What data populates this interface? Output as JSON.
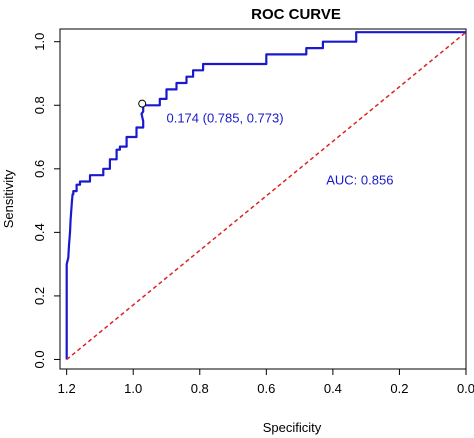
{
  "chart_data": {
    "type": "line",
    "title": "ROC CURVE",
    "xlabel": "Specificity",
    "ylabel": "Sensitivity",
    "xlim": [
      1.22,
      0.0
    ],
    "ylim": [
      -0.03,
      1.04
    ],
    "x_reversed": true,
    "x_ticks": [
      1.2,
      1.0,
      0.8,
      0.6,
      0.4,
      0.2,
      0.0
    ],
    "x_tick_labels": [
      "1.2",
      "1.0",
      "0.8",
      "0.6",
      "0.4",
      "0.2",
      "0.0"
    ],
    "y_ticks": [
      0.0,
      0.2,
      0.4,
      0.6,
      0.8,
      1.0
    ],
    "y_tick_labels": [
      "0.0",
      "0.2",
      "0.4",
      "0.6",
      "0.8",
      "1.0"
    ],
    "grid": false,
    "series": [
      {
        "kind": "roc",
        "color": "#1a1acc",
        "x": [
          1.2,
          1.2,
          1.195,
          1.193,
          1.19,
          1.188,
          1.186,
          1.184,
          1.182,
          1.18,
          1.18,
          1.17,
          1.17,
          1.16,
          1.16,
          1.13,
          1.13,
          1.09,
          1.09,
          1.07,
          1.07,
          1.05,
          1.05,
          1.04,
          1.04,
          1.02,
          1.02,
          0.99,
          0.99,
          0.97,
          0.97,
          0.975,
          0.97,
          0.97,
          0.92,
          0.92,
          0.9,
          0.9,
          0.87,
          0.87,
          0.84,
          0.84,
          0.82,
          0.82,
          0.79,
          0.79,
          0.6,
          0.6,
          0.48,
          0.48,
          0.43,
          0.43,
          0.33,
          0.33,
          0.0
        ],
        "y": [
          0.0,
          0.3,
          0.32,
          0.36,
          0.4,
          0.44,
          0.47,
          0.5,
          0.52,
          0.52,
          0.53,
          0.53,
          0.55,
          0.55,
          0.56,
          0.56,
          0.58,
          0.58,
          0.6,
          0.6,
          0.63,
          0.63,
          0.66,
          0.66,
          0.67,
          0.67,
          0.7,
          0.7,
          0.73,
          0.73,
          0.75,
          0.773,
          0.78,
          0.8,
          0.8,
          0.82,
          0.82,
          0.85,
          0.85,
          0.87,
          0.87,
          0.89,
          0.89,
          0.91,
          0.91,
          0.93,
          0.93,
          0.96,
          0.96,
          0.98,
          0.98,
          1.0,
          1.0,
          1.03,
          1.03
        ]
      },
      {
        "kind": "reference",
        "color": "#dd2222",
        "x": [
          1.2,
          0.0
        ],
        "y": [
          0.0,
          1.03
        ]
      }
    ],
    "marker": {
      "x": 0.973,
      "y": 0.805
    },
    "annotations": [
      {
        "text": "0.174 (0.785, 0.773)",
        "x": 0.9,
        "y": 0.745,
        "color": "#1a1acc"
      },
      {
        "text": "AUC: 0.856",
        "x": 0.42,
        "y": 0.55,
        "color": "#1a1acc"
      }
    ]
  }
}
